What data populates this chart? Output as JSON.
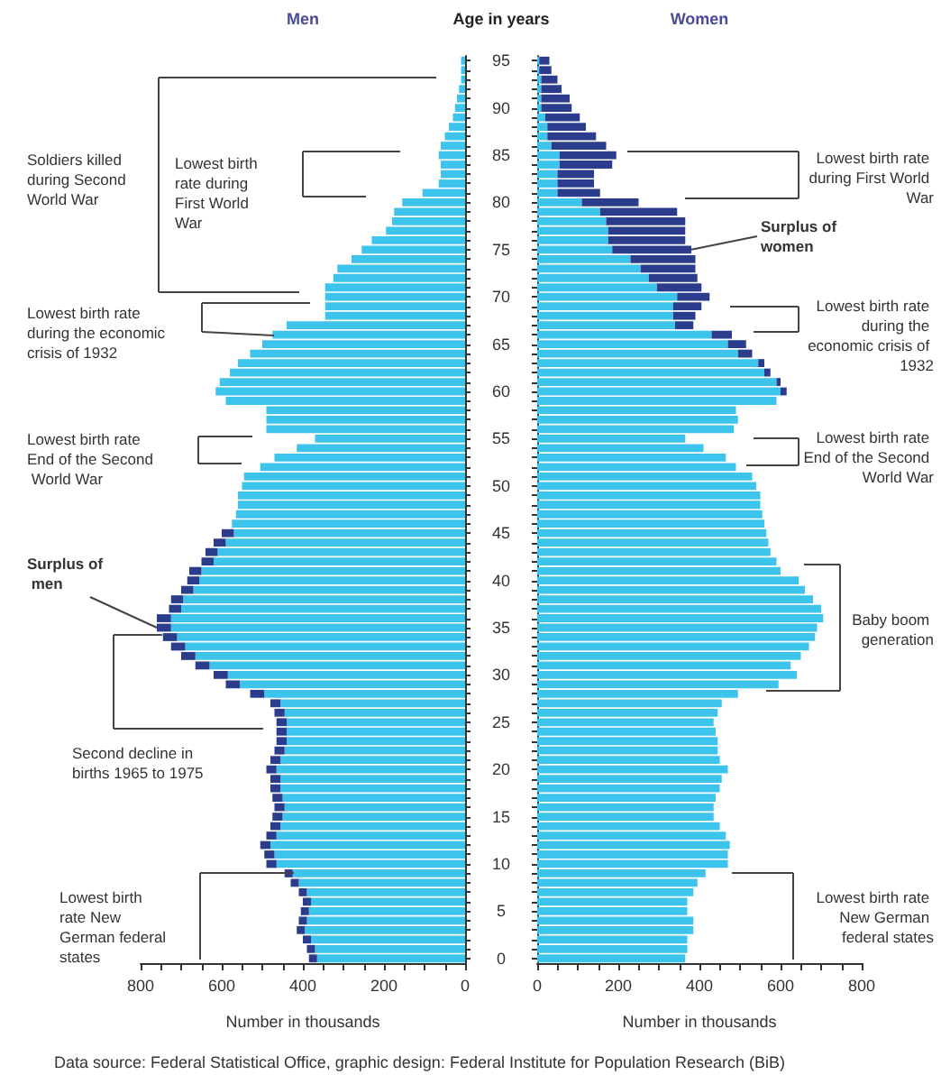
{
  "chart_data": [
    {
      "type": "bar",
      "orientation": "horizontal",
      "stacked": true,
      "title": "Men",
      "ylabel": "Age in years",
      "xlabel": "Number in thousands",
      "categories": [
        "95",
        null,
        null,
        null,
        null,
        "90",
        null,
        null,
        null,
        null,
        "85",
        null,
        null,
        null,
        null,
        "80",
        null,
        null,
        null,
        null,
        "75",
        null,
        null,
        null,
        null,
        "70",
        null,
        null,
        null,
        null,
        "65",
        null,
        null,
        null,
        null,
        "60",
        null,
        null,
        null,
        null,
        "55",
        null,
        null,
        null,
        null,
        "50",
        null,
        null,
        null,
        null,
        "45",
        null,
        null,
        null,
        null,
        "40",
        null,
        null,
        null,
        null,
        "35",
        null,
        null,
        null,
        null,
        "30",
        null,
        null,
        null,
        null,
        "25",
        null,
        null,
        null,
        null,
        "20",
        null,
        null,
        null,
        null,
        "15",
        null,
        null,
        null,
        null,
        "10",
        null,
        null,
        null,
        null,
        "5",
        null,
        null,
        null,
        null,
        "0"
      ],
      "xlim": [
        800,
        0
      ],
      "xticks": [
        0,
        {
          "value": 50,
          "label": null
        },
        {
          "value": 100,
          "label": null
        },
        {
          "value": 150,
          "label": null
        },
        200,
        {
          "value": 250,
          "label": null
        },
        {
          "value": 300,
          "label": null
        },
        {
          "value": 350,
          "label": null
        },
        400,
        {
          "value": 450,
          "label": null
        },
        {
          "value": 500,
          "label": null
        },
        {
          "value": 550,
          "label": null
        },
        600,
        {
          "value": 650,
          "label": null
        },
        {
          "value": 700,
          "label": null
        },
        {
          "value": 750,
          "label": null
        },
        800
      ],
      "series": [
        {
          "type": "bar",
          "color": "#3cc4ec",
          "values": [
            10,
            10,
            10,
            15,
            20,
            25,
            30,
            40,
            50,
            60,
            65,
            60,
            60,
            65,
            105,
            155,
            175,
            180,
            195,
            230,
            255,
            280,
            315,
            325,
            345,
            345,
            345,
            345,
            440,
            475,
            500,
            530,
            560,
            580,
            605,
            615,
            590,
            490,
            490,
            490,
            370,
            415,
            470,
            505,
            545,
            550,
            560,
            560,
            565,
            575,
            570,
            590,
            610,
            620,
            650,
            655,
            670,
            695,
            700,
            725,
            725,
            710,
            690,
            665,
            630,
            585,
            555,
            495,
            455,
            445,
            440,
            440,
            440,
            445,
            455,
            465,
            455,
            455,
            450,
            445,
            450,
            455,
            465,
            480,
            470,
            465,
            425,
            410,
            390,
            380,
            385,
            390,
            395,
            380,
            370,
            365
          ]
        },
        {
          "type": "bar",
          "color": "#2c3c8c",
          "values": [
            0,
            0,
            0,
            0,
            0,
            0,
            0,
            0,
            0,
            0,
            0,
            0,
            0,
            0,
            0,
            0,
            0,
            0,
            0,
            0,
            0,
            0,
            0,
            0,
            0,
            0,
            0,
            0,
            0,
            0,
            0,
            0,
            0,
            0,
            0,
            0,
            0,
            0,
            0,
            0,
            0,
            0,
            0,
            0,
            0,
            0,
            0,
            0,
            0,
            0,
            30,
            30,
            30,
            30,
            30,
            30,
            30,
            30,
            30,
            35,
            35,
            35,
            35,
            35,
            35,
            35,
            35,
            35,
            25,
            25,
            25,
            25,
            25,
            25,
            25,
            25,
            25,
            25,
            25,
            25,
            25,
            25,
            25,
            25,
            25,
            25,
            20,
            20,
            20,
            20,
            20,
            20,
            20,
            20,
            20,
            20
          ]
        }
      ],
      "annotations": [
        "Soldiers killed during Second World War",
        "Lowest birth rate during First World War",
        "Lowest birth rate during the economic crisis of 1932",
        "Lowest birth rate End of the Second World War",
        {
          "text": "Surplus of men",
          "x": 760,
          "y": "35"
        },
        "Second decline in births 1965 to 1975",
        "Lowest birth rate New German federal states",
        "Data source: Federal Statistical Office, graphic design: Federal Institute for Population Research (BiB)"
      ]
    },
    {
      "type": "bar",
      "orientation": "horizontal",
      "stacked": true,
      "title": "Women",
      "xlabel": "Number in thousands",
      "tick_labels": "x",
      "categories": [
        "95",
        null,
        null,
        null,
        null,
        "90",
        null,
        null,
        null,
        null,
        "85",
        null,
        null,
        null,
        null,
        "80",
        null,
        null,
        null,
        null,
        "75",
        null,
        null,
        null,
        null,
        "70",
        null,
        null,
        null,
        null,
        "65",
        null,
        null,
        null,
        null,
        "60",
        null,
        null,
        null,
        null,
        "55",
        null,
        null,
        null,
        null,
        "50",
        null,
        null,
        null,
        null,
        "45",
        null,
        null,
        null,
        null,
        "40",
        null,
        null,
        null,
        null,
        "35",
        null,
        null,
        null,
        null,
        "30",
        null,
        null,
        null,
        null,
        "25",
        null,
        null,
        null,
        null,
        "20",
        null,
        null,
        null,
        null,
        "15",
        null,
        null,
        null,
        null,
        "10",
        null,
        null,
        null,
        null,
        "5",
        null,
        null,
        null,
        null,
        "0"
      ],
      "xlim": [
        0,
        800
      ],
      "xticks": [
        0,
        {
          "value": 50,
          "label": null
        },
        {
          "value": 100,
          "label": null
        },
        {
          "value": 150,
          "label": null
        },
        200,
        {
          "value": 250,
          "label": null
        },
        {
          "value": 300,
          "label": null
        },
        {
          "value": 350,
          "label": null
        },
        400,
        {
          "value": 450,
          "label": null
        },
        {
          "value": 500,
          "label": null
        },
        {
          "value": 550,
          "label": null
        },
        600,
        {
          "value": 650,
          "label": null
        },
        {
          "value": 700,
          "label": null
        },
        {
          "value": 750,
          "label": null
        },
        800
      ],
      "series": [
        {
          "type": "bar",
          "color": "#3cc4ec",
          "values": [
            5,
            5,
            10,
            10,
            10,
            10,
            20,
            25,
            25,
            35,
            55,
            55,
            50,
            50,
            50,
            110,
            155,
            170,
            175,
            175,
            185,
            230,
            255,
            275,
            295,
            345,
            335,
            335,
            340,
            430,
            470,
            495,
            545,
            560,
            590,
            600,
            590,
            490,
            495,
            485,
            365,
            410,
            465,
            490,
            530,
            540,
            550,
            550,
            555,
            560,
            565,
            570,
            575,
            590,
            600,
            645,
            660,
            680,
            700,
            705,
            690,
            685,
            670,
            650,
            625,
            640,
            595,
            495,
            455,
            445,
            435,
            440,
            445,
            445,
            450,
            470,
            455,
            450,
            440,
            435,
            435,
            450,
            465,
            475,
            470,
            470,
            415,
            395,
            385,
            370,
            370,
            385,
            385,
            370,
            370,
            365
          ]
        },
        {
          "type": "bar",
          "color": "#2c3c8c",
          "values": [
            25,
            30,
            40,
            50,
            70,
            75,
            85,
            95,
            120,
            135,
            140,
            130,
            90,
            90,
            105,
            140,
            190,
            195,
            190,
            190,
            195,
            160,
            135,
            120,
            110,
            80,
            70,
            55,
            45,
            50,
            45,
            35,
            15,
            15,
            10,
            15,
            0,
            0,
            0,
            0,
            0,
            0,
            0,
            0,
            0,
            0,
            0,
            0,
            0,
            0,
            0,
            0,
            0,
            0,
            0,
            0,
            0,
            0,
            0,
            0,
            0,
            0,
            0,
            0,
            0,
            0,
            0,
            0,
            0,
            0,
            0,
            0,
            0,
            0,
            0,
            0,
            0,
            0,
            0,
            0,
            0,
            0,
            0,
            0,
            0,
            0,
            0,
            0,
            0,
            0,
            0,
            0,
            0,
            0,
            0,
            0
          ]
        }
      ],
      "annotations": [
        "Lowest birth rate during First World War",
        {
          "text": "Surplus of women",
          "x": 380,
          "y": "75"
        },
        "Lowest birth rate during the economic crisis of 1932",
        "Lowest birth rate End of the Second World War",
        "Baby boom generation",
        "Lowest birth rate New German federal states"
      ]
    }
  ]
}
